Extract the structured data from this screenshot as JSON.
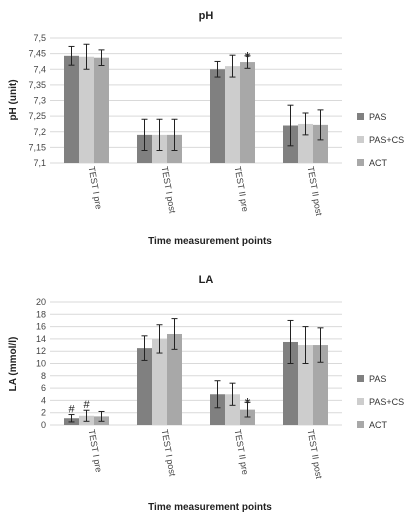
{
  "colors": {
    "PAS": "#808080",
    "PAS+CS": "#cdcdcd",
    "ACT": "#a8a8a8",
    "grid": "#d9d9d9",
    "error": "#222222"
  },
  "chart_data": [
    {
      "type": "bar",
      "title": "pH",
      "xlabel": "Time measurement points",
      "ylabel": "pH (unit)",
      "ylim": [
        7.1,
        7.5
      ],
      "yticks": [
        "7,5",
        "7,45",
        "7,4",
        "7,35",
        "7,3",
        "7,25",
        "7,2",
        "7,15",
        "7,1"
      ],
      "ytick_values": [
        7.5,
        7.45,
        7.4,
        7.35,
        7.3,
        7.25,
        7.2,
        7.15,
        7.1
      ],
      "grid": true,
      "legend": "right",
      "categories": [
        "TEST I pre",
        "TEST I post",
        "TEST II pre",
        "TEST II post"
      ],
      "series": [
        {
          "name": "PAS",
          "values": [
            7.443,
            7.19,
            7.4,
            7.22
          ],
          "errors": [
            0.03,
            0.05,
            0.025,
            0.065
          ]
        },
        {
          "name": "PAS+CS",
          "values": [
            7.44,
            7.19,
            7.41,
            7.225
          ],
          "errors": [
            0.04,
            0.05,
            0.035,
            0.035
          ]
        },
        {
          "name": "ACT",
          "values": [
            7.437,
            7.19,
            7.423,
            7.222
          ],
          "errors": [
            0.025,
            0.05,
            0.02,
            0.048
          ]
        }
      ],
      "annotations": [
        {
          "text": "*",
          "category": 2,
          "series": 2
        }
      ]
    },
    {
      "type": "bar",
      "title": "LA",
      "xlabel": "Time measurement points",
      "ylabel": "LA (mmol/l)",
      "ylim": [
        0,
        20
      ],
      "yticks": [
        "20",
        "18",
        "16",
        "14",
        "12",
        "10",
        "8",
        "6",
        "4",
        "2",
        "0"
      ],
      "ytick_values": [
        20,
        18,
        16,
        14,
        12,
        10,
        8,
        6,
        4,
        2,
        0
      ],
      "grid": true,
      "legend": "right",
      "categories": [
        "TEST I pre",
        "TEST I post",
        "TEST II pre",
        "TEST II post"
      ],
      "series": [
        {
          "name": "PAS",
          "values": [
            1.1,
            12.5,
            5.0,
            13.5
          ],
          "errors": [
            0.6,
            2.0,
            2.2,
            3.5
          ]
        },
        {
          "name": "PAS+CS",
          "values": [
            1.5,
            14.0,
            5.0,
            13.0
          ],
          "errors": [
            0.9,
            2.3,
            1.8,
            3.0
          ]
        },
        {
          "name": "ACT",
          "values": [
            1.4,
            14.8,
            2.5,
            13.0
          ],
          "errors": [
            0.8,
            2.5,
            1.2,
            2.8
          ]
        }
      ],
      "annotations": [
        {
          "text": "#",
          "category": 0,
          "series": 0
        },
        {
          "text": "#",
          "category": 0,
          "series": 1
        },
        {
          "text": "*",
          "category": 2,
          "series": 2
        }
      ]
    }
  ]
}
